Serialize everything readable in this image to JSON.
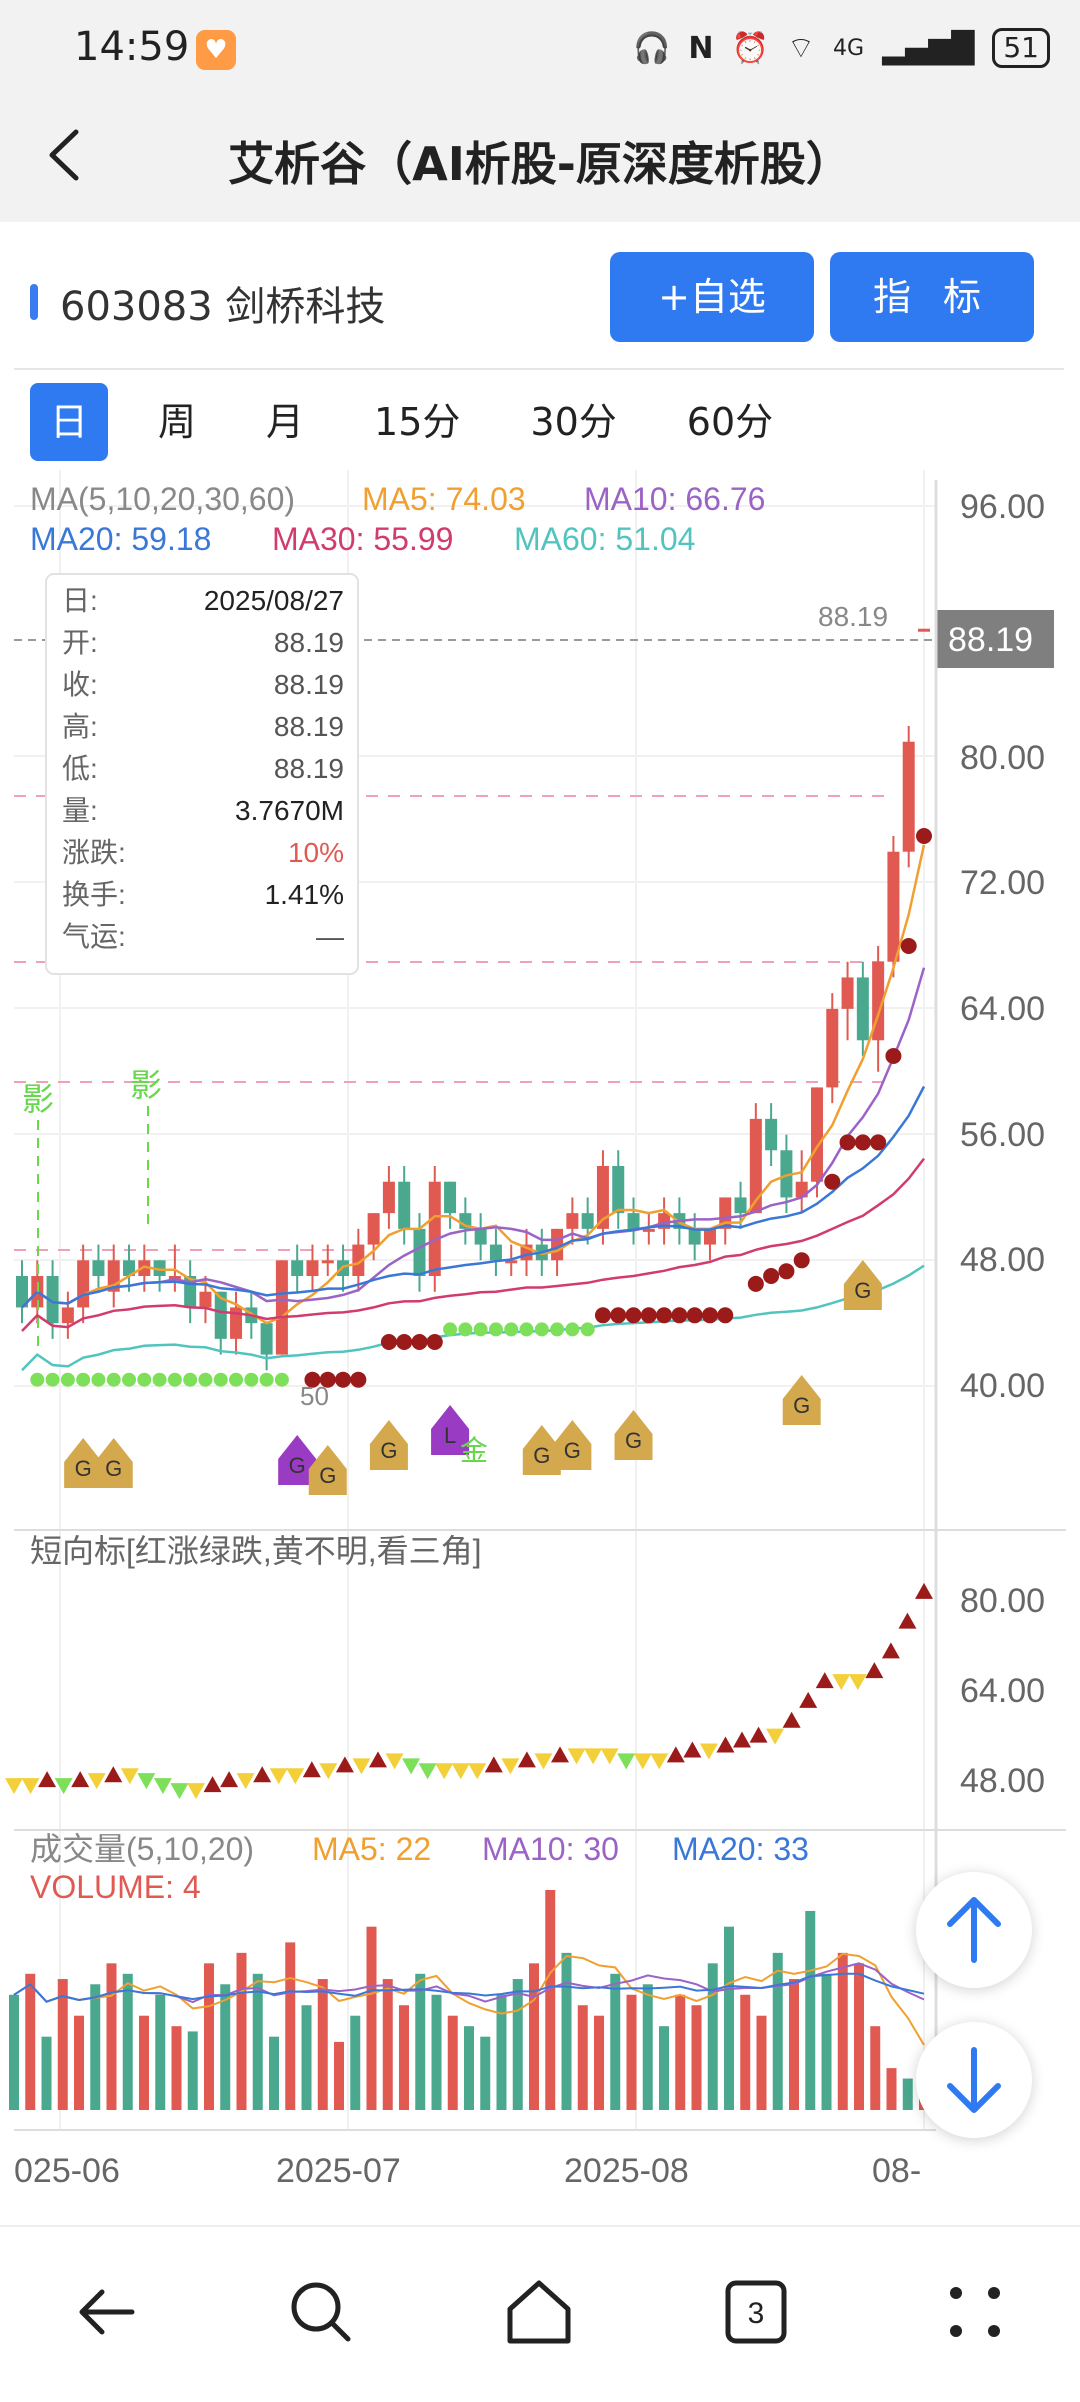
{
  "status_bar": {
    "time": "14:59",
    "signal": "4G",
    "battery": "51"
  },
  "header": {
    "title": "艾析谷（AI析股-原深度析股）"
  },
  "stock": {
    "name": "603083 剑桥科技"
  },
  "buttons": {
    "watchlist": "+自选",
    "indicator": "指  标"
  },
  "tabs": [
    "日",
    "周",
    "月",
    "15分",
    "30分",
    "60分"
  ],
  "ma_legend": {
    "label": "MA(5,10,20,30,60)",
    "ma5": "MA5: 74.03",
    "ma10": "MA10: 66.76",
    "ma20": "MA20: 59.18",
    "ma30": "MA30: 55.99",
    "ma60": "MA60: 51.04"
  },
  "tooltip": {
    "rows": [
      {
        "k": "日:",
        "v": "2025/08/27"
      },
      {
        "k": "开:",
        "v": "88.19"
      },
      {
        "k": "收:",
        "v": "88.19"
      },
      {
        "k": "高:",
        "v": "88.19"
      },
      {
        "k": "低:",
        "v": "88.19"
      },
      {
        "k": "量:",
        "v": "3.7670M"
      },
      {
        "k": "涨跌:",
        "v": "10%"
      },
      {
        "k": "换手:",
        "v": "1.41%"
      },
      {
        "k": "气运:",
        "v": "—"
      }
    ]
  },
  "price_axis": [
    "96.00",
    "80.00",
    "72.00",
    "64.00",
    "56.00",
    "48.00",
    "40.00"
  ],
  "price_tag": {
    "label": "88.19",
    "value": "88.19"
  },
  "short_indicator": {
    "title": "短向标[红涨绿跌,黄不明,看三角]",
    "axis": [
      "80.00",
      "64.00",
      "48.00"
    ]
  },
  "volume": {
    "label": "成交量(5,10,20)",
    "ma5": "MA5: 22",
    "ma10": "MA10: 30",
    "ma20": "MA20: 33",
    "volume": "VOLUME: 4"
  },
  "x_axis": [
    "025-06",
    "2025-07",
    "2025-08",
    "08-"
  ],
  "chart_labels": {
    "ying": "影",
    "g": "G",
    "l": "L",
    "jin": "金",
    "val_50": "50"
  },
  "colors": {
    "up": "#e05a52",
    "down": "#4aa88f",
    "ma5": "#f0a030",
    "ma10": "#9c63c6",
    "ma20": "#3a78d8",
    "ma30": "#d23b6e",
    "ma60": "#52c4bf",
    "accent": "#2f7af0"
  },
  "chart_data": {
    "type": "candlestick",
    "ma_series": [
      {
        "name": "MA5",
        "last": 74.03
      },
      {
        "name": "MA10",
        "last": 66.76
      },
      {
        "name": "MA20",
        "last": 59.18
      },
      {
        "name": "MA30",
        "last": 55.99
      },
      {
        "name": "MA60",
        "last": 51.04
      }
    ],
    "ylim": [
      34,
      98
    ],
    "candles": [
      [
        47,
        45,
        48,
        44
      ],
      [
        45,
        47,
        48,
        44
      ],
      [
        47,
        44,
        48,
        43
      ],
      [
        44,
        45,
        46,
        43
      ],
      [
        45,
        48,
        49,
        44
      ],
      [
        48,
        47,
        49,
        46
      ],
      [
        46,
        48,
        49,
        45
      ],
      [
        48,
        47,
        49,
        46
      ],
      [
        47,
        48,
        49,
        46
      ],
      [
        48,
        47,
        48,
        46
      ],
      [
        47,
        47,
        49,
        46
      ],
      [
        47,
        45,
        48,
        44
      ],
      [
        45,
        46,
        47,
        44
      ],
      [
        46,
        43,
        46,
        42
      ],
      [
        43,
        45,
        46,
        42
      ],
      [
        45,
        44,
        46,
        43
      ],
      [
        44,
        42,
        44,
        41
      ],
      [
        42,
        48,
        48,
        42
      ],
      [
        48,
        47,
        49,
        46
      ],
      [
        47,
        48,
        49,
        46
      ],
      [
        48,
        48,
        49,
        47
      ],
      [
        48,
        47,
        49,
        46
      ],
      [
        47,
        49,
        50,
        46
      ],
      [
        49,
        51,
        51,
        48
      ],
      [
        51,
        53,
        54,
        50
      ],
      [
        53,
        50,
        54,
        49
      ],
      [
        50,
        47,
        51,
        46
      ],
      [
        47,
        53,
        54,
        46
      ],
      [
        53,
        51,
        53,
        50
      ],
      [
        51,
        50,
        52,
        49
      ],
      [
        50,
        49,
        51,
        48
      ],
      [
        49,
        48,
        50,
        47
      ],
      [
        48,
        48,
        49,
        47
      ],
      [
        48,
        49,
        50,
        47
      ],
      [
        49,
        48,
        50,
        47
      ],
      [
        48,
        50,
        50,
        47
      ],
      [
        50,
        51,
        52,
        49
      ],
      [
        51,
        50,
        52,
        49
      ],
      [
        50,
        54,
        55,
        49
      ],
      [
        54,
        51,
        55,
        50
      ],
      [
        51,
        50,
        52,
        49
      ],
      [
        50,
        50,
        51,
        49
      ],
      [
        50,
        51,
        52,
        49
      ],
      [
        51,
        50,
        52,
        49
      ],
      [
        50,
        49,
        51,
        48
      ],
      [
        49,
        50,
        50,
        48
      ],
      [
        50,
        52,
        52,
        49
      ],
      [
        52,
        51,
        53,
        50
      ],
      [
        51,
        57,
        58,
        51
      ],
      [
        57,
        55,
        58,
        54
      ],
      [
        55,
        52,
        56,
        51
      ],
      [
        52,
        53,
        55,
        51
      ],
      [
        53,
        59,
        59,
        52
      ],
      [
        59,
        64,
        65,
        58
      ],
      [
        64,
        66,
        67,
        62
      ],
      [
        66,
        62,
        67,
        61
      ],
      [
        62,
        67,
        68,
        60
      ],
      [
        67,
        74,
        75,
        66
      ],
      [
        74,
        81,
        82,
        73
      ],
      [
        88.19,
        88.19,
        88.19,
        88.19
      ]
    ],
    "short_indicator": [
      45,
      45,
      46,
      45,
      46,
      46,
      47,
      47,
      46,
      45,
      44,
      44,
      45,
      46,
      46,
      47,
      47,
      47,
      48,
      48,
      49,
      49,
      50,
      50,
      49,
      48,
      48,
      48,
      48,
      49,
      49,
      50,
      50,
      51,
      51,
      51,
      51,
      50,
      50,
      50,
      51,
      52,
      52,
      53,
      54,
      55,
      55,
      58,
      62,
      66,
      66,
      66,
      68,
      72,
      78,
      84
    ],
    "volume": [
      22,
      26,
      14,
      25,
      18,
      24,
      28,
      26,
      18,
      22,
      16,
      15,
      28,
      24,
      30,
      26,
      14,
      32,
      20,
      25,
      13,
      18,
      35,
      25,
      20,
      26,
      22,
      18,
      16,
      14,
      22,
      25,
      28,
      42,
      30,
      20,
      18,
      26,
      22,
      24,
      16,
      22,
      20,
      28,
      35,
      22,
      18,
      30,
      25,
      38,
      26,
      30,
      28,
      16,
      8,
      6,
      4
    ],
    "price_axis_values": [
      96,
      80,
      72,
      64,
      56,
      48,
      40
    ],
    "short_axis_values": [
      80,
      64,
      48
    ]
  }
}
